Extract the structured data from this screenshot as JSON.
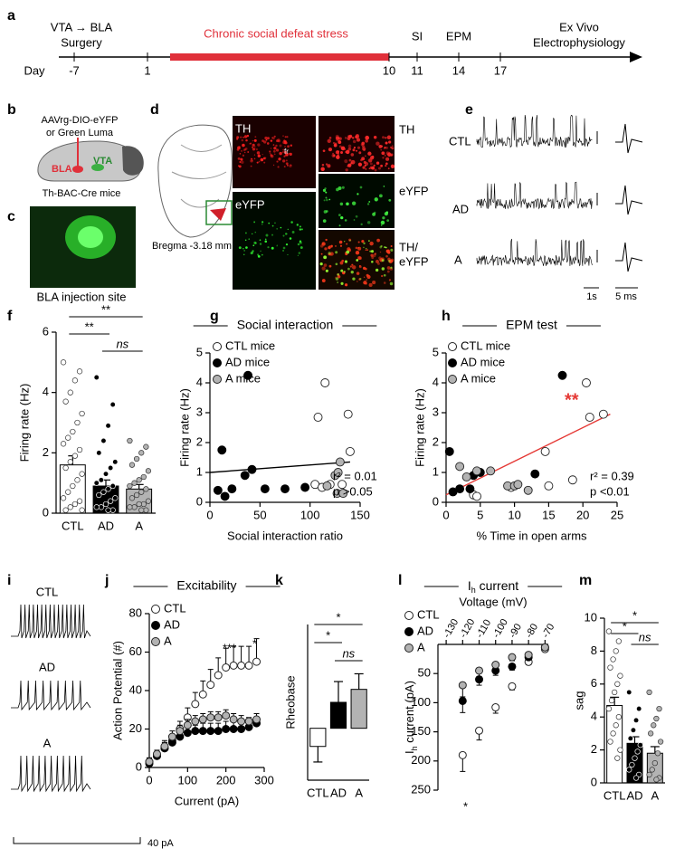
{
  "panel_labels": [
    "a",
    "b",
    "c",
    "d",
    "e",
    "f",
    "g",
    "h",
    "i",
    "j",
    "k",
    "l",
    "m"
  ],
  "timeline": {
    "day_label": "Day",
    "days": [
      -7,
      1,
      10,
      11,
      14,
      17
    ],
    "stress_label": "Chronic social defeat stress",
    "events": [
      [
        "VTA → BLA",
        "Surgery"
      ],
      [
        "SI"
      ],
      [
        "EPM"
      ],
      [
        "Ex Vivo",
        "Electrophysiology"
      ]
    ]
  },
  "surgery": {
    "virus": [
      "AAVrg-DIO-eYFP",
      "or Green Luma"
    ],
    "regions": [
      "BLA",
      "VTA"
    ],
    "mouse": "Th-BAC-Cre mice"
  },
  "injection": {
    "caption": "BLA injection site"
  },
  "histology": {
    "atlas_label": "Bregma -3.18 mm",
    "left_labels": [
      "TH",
      "eYFP"
    ],
    "tract": "fr",
    "right_labels": [
      [
        "TH"
      ],
      [
        "eYFP"
      ],
      [
        "TH/",
        "eYFP"
      ]
    ]
  },
  "recordings": {
    "groups": [
      "CTL",
      "AD",
      "A"
    ],
    "scale_time": "1s",
    "scale_spike": "5 ms"
  },
  "evoked": {
    "groups": [
      "CTL",
      "AD",
      "A"
    ],
    "scale": "40 pA"
  },
  "chart_data": [
    {
      "type": "bar",
      "ylabel": "Firing rate (Hz)",
      "categories": [
        "CTL",
        "AD",
        "A"
      ],
      "values": [
        1.6,
        0.9,
        0.8
      ],
      "errors": [
        0.3,
        0.2,
        0.15
      ],
      "colors": [
        "#ffffff",
        "#000000",
        "#b3b3b3"
      ],
      "ylim": [
        0,
        6
      ],
      "yticks": [
        0,
        2,
        4,
        6
      ],
      "points": [
        [
          5.0,
          4.7,
          4.4,
          4.0,
          3.7,
          3.3,
          3.0,
          2.7,
          2.5,
          2.3,
          2.1,
          1.9,
          1.7,
          1.5,
          1.3,
          1.1,
          0.9,
          0.7,
          0.5,
          0.4,
          0.3,
          0.2,
          0.1,
          0.1
        ],
        [
          4.5,
          3.6,
          2.9,
          2.4,
          2.0,
          1.7,
          1.5,
          1.3,
          1.1,
          1.0,
          0.9,
          0.8,
          0.7,
          0.6,
          0.5,
          0.4,
          0.3,
          0.2,
          0.2,
          0.1,
          0.1
        ],
        [
          2.4,
          2.2,
          2.0,
          1.8,
          1.6,
          1.4,
          1.2,
          1.1,
          1.0,
          0.9,
          0.8,
          0.7,
          0.6,
          0.5,
          0.4,
          0.3,
          0.3,
          0.2,
          0.2,
          0.1,
          0.1
        ]
      ],
      "significance": [
        {
          "pair": [
            0,
            2
          ],
          "label": "**"
        },
        {
          "pair": [
            0,
            1
          ],
          "label": "**"
        },
        {
          "pair": [
            1,
            2
          ],
          "label": "ns"
        }
      ]
    },
    {
      "type": "scatter",
      "title": "Social interaction",
      "xlabel": "Social interaction ratio",
      "ylabel": "Firing rate (Hz)",
      "xlim": [
        0,
        150
      ],
      "xticks": [
        0,
        50,
        100,
        150
      ],
      "ylim": [
        0,
        5
      ],
      "yticks": [
        0,
        1,
        2,
        3,
        4,
        5
      ],
      "series": [
        {
          "name": "CTL mice",
          "color": "#ffffff",
          "x": [
            105,
            108,
            112,
            115,
            120,
            132,
            138,
            140
          ],
          "y": [
            0.6,
            2.85,
            0.5,
            4.0,
            0.6,
            0.6,
            2.95,
            1.7
          ]
        },
        {
          "name": "AD mice",
          "color": "#000000",
          "x": [
            8,
            12,
            15,
            22,
            35,
            38,
            42,
            55,
            75,
            95
          ],
          "y": [
            0.4,
            1.75,
            0.2,
            0.45,
            0.9,
            4.25,
            1.1,
            0.45,
            0.45,
            0.5
          ]
        },
        {
          "name": "A mice",
          "color": "#b3b3b3",
          "x": [
            117,
            125,
            127,
            128,
            130,
            133
          ],
          "y": [
            0.55,
            0.9,
            0.3,
            1.0,
            1.35,
            0.3
          ]
        }
      ],
      "fit": {
        "x": [
          0,
          140
        ],
        "y": [
          1.0,
          1.35
        ],
        "color": "#000000"
      },
      "annotations": [
        {
          "text": "r² = 0.01"
        },
        {
          "text": "p >0.05"
        }
      ]
    },
    {
      "type": "scatter",
      "title": "EPM test",
      "xlabel": "% Time in open arms",
      "ylabel": "Firing rate (Hz)",
      "xlim": [
        0,
        25
      ],
      "xticks": [
        0,
        5,
        10,
        15,
        20,
        25
      ],
      "ylim": [
        0,
        5
      ],
      "yticks": [
        0,
        1,
        2,
        3,
        4,
        5
      ],
      "series": [
        {
          "name": "CTL mice",
          "color": "#ffffff",
          "x": [
            4,
            4.5,
            9.5,
            15,
            18.5,
            20.5,
            21,
            23,
            14.5
          ],
          "y": [
            0.25,
            0.2,
            0.5,
            0.55,
            0.75,
            4.0,
            2.85,
            2.95,
            1.7
          ]
        },
        {
          "name": "AD mice",
          "color": "#000000",
          "x": [
            0.5,
            1,
            2,
            3.5,
            4,
            5,
            13,
            17
          ],
          "y": [
            1.7,
            0.35,
            0.45,
            0.45,
            0.9,
            1.0,
            0.95,
            4.25
          ]
        },
        {
          "name": "A mice",
          "color": "#b3b3b3",
          "x": [
            2,
            3,
            4.5,
            6.5,
            9,
            10,
            12,
            10.5
          ],
          "y": [
            1.2,
            0.85,
            1.05,
            1.05,
            0.55,
            0.55,
            0.4,
            0.6
          ]
        }
      ],
      "fit": {
        "x": [
          0,
          24
        ],
        "y": [
          0.25,
          2.95
        ],
        "color": "#e53935"
      },
      "annotations": [
        {
          "text": "r² = 0.39"
        },
        {
          "text": "p <0.01"
        },
        {
          "text": "**",
          "color": "#e53935"
        }
      ]
    },
    {
      "type": "line",
      "title": "Excitability",
      "xlabel": "Current (pA)",
      "ylabel": "Action Potential (#)",
      "xlim": [
        0,
        300
      ],
      "xticks": [
        0,
        100,
        200,
        300
      ],
      "ylim": [
        0,
        80
      ],
      "yticks": [
        0,
        20,
        40,
        60,
        80
      ],
      "x": [
        0,
        20,
        40,
        60,
        80,
        100,
        120,
        140,
        160,
        180,
        200,
        220,
        240,
        260,
        280
      ],
      "series": [
        {
          "name": "CTL",
          "color": "#ffffff",
          "values": [
            3,
            6,
            10,
            14,
            20,
            26,
            33,
            38,
            43,
            48,
            52,
            53,
            53,
            53,
            55
          ],
          "errors": [
            2,
            2,
            3,
            3,
            4,
            5,
            6,
            7,
            8,
            9,
            10,
            10,
            10,
            10,
            12
          ]
        },
        {
          "name": "AD",
          "color": "#000000",
          "values": [
            2,
            6,
            10,
            13,
            16,
            18,
            19,
            19,
            19,
            19,
            20,
            20,
            20,
            21,
            23
          ],
          "errors": [
            2,
            2,
            3,
            3,
            3,
            3,
            3,
            4,
            4,
            4,
            4,
            4,
            4,
            4,
            3
          ]
        },
        {
          "name": "A",
          "color": "#b3b3b3",
          "values": [
            3,
            7,
            11,
            16,
            19,
            22,
            24,
            25,
            26,
            26,
            27,
            25,
            24,
            24,
            25
          ],
          "errors": [
            2,
            2,
            3,
            3,
            3,
            3,
            3,
            3,
            3,
            3,
            3,
            3,
            3,
            2,
            3
          ]
        }
      ],
      "annotations": [
        {
          "text": "***"
        },
        {
          "text": "*"
        }
      ]
    },
    {
      "type": "bar",
      "ylabel": "Rheobase",
      "categories": [
        "CTL",
        "AD",
        "A"
      ],
      "values": [
        -7,
        10,
        15
      ],
      "errors": [
        6,
        8,
        6
      ],
      "colors": [
        "#ffffff",
        "#000000",
        "#b3b3b3"
      ],
      "ylim": [
        -20,
        40
      ],
      "significance": [
        {
          "pair": [
            0,
            2
          ],
          "label": "*"
        },
        {
          "pair": [
            0,
            1
          ],
          "label": "*"
        },
        {
          "pair": [
            1,
            2
          ],
          "label": "ns"
        }
      ]
    },
    {
      "type": "line",
      "title": [
        "I",
        "h",
        " current"
      ],
      "xlabel": "Voltage (mV)",
      "ylabel": [
        "I",
        "h",
        " current (pA)"
      ],
      "invert_y": true,
      "x_axis_top": true,
      "xlim": [
        -135,
        -68
      ],
      "xticks": [
        -130,
        -120,
        -110,
        -100,
        -90,
        -80,
        -70
      ],
      "ylim": [
        0,
        250
      ],
      "yticks": [
        50,
        100,
        150,
        200,
        250
      ],
      "x": [
        -120,
        -110,
        -100,
        -90,
        -80,
        -70
      ],
      "series": [
        {
          "name": "CTL",
          "color": "#ffffff",
          "values": [
            190,
            148,
            108,
            72,
            30,
            8
          ],
          "errors": [
            28,
            16,
            10,
            6,
            5,
            3
          ]
        },
        {
          "name": "AD",
          "color": "#000000",
          "values": [
            97,
            60,
            45,
            38,
            22,
            5
          ],
          "errors": [
            20,
            10,
            8,
            6,
            4,
            2
          ]
        },
        {
          "name": "A",
          "color": "#b3b3b3",
          "values": [
            70,
            45,
            35,
            22,
            18,
            5
          ],
          "errors": [
            20,
            10,
            8,
            6,
            4,
            2
          ]
        }
      ],
      "annotations": [
        {
          "text": "*"
        }
      ]
    },
    {
      "type": "bar",
      "ylabel": "sag",
      "categories": [
        "CTL",
        "AD",
        "A"
      ],
      "values": [
        4.7,
        2.4,
        1.8
      ],
      "errors": [
        0.5,
        0.4,
        0.4
      ],
      "colors": [
        "#ffffff",
        "#000000",
        "#b3b3b3"
      ],
      "ylim": [
        0,
        10
      ],
      "yticks": [
        0,
        2,
        4,
        6,
        8,
        10
      ],
      "points": [
        [
          9.2,
          8.6,
          8.0,
          7.5,
          7.0,
          6.5,
          6.0,
          5.5,
          5.0,
          4.5,
          4.0,
          3.5,
          3.0,
          2.5,
          2.0,
          1.5
        ],
        [
          5.5,
          4.5,
          3.8,
          3.2,
          2.7,
          2.3,
          1.9,
          1.5,
          1.1,
          0.8,
          0.5,
          0.3
        ],
        [
          5.5,
          4.5,
          3.9,
          3.5,
          3.0,
          2.5,
          1.8,
          1.2,
          0.8,
          0.5,
          0.3,
          0.2
        ]
      ],
      "significance": [
        {
          "pair": [
            0,
            2
          ],
          "label": "*"
        },
        {
          "pair": [
            0,
            1
          ],
          "label": "*"
        },
        {
          "pair": [
            1,
            2
          ],
          "label": "ns"
        }
      ]
    }
  ]
}
